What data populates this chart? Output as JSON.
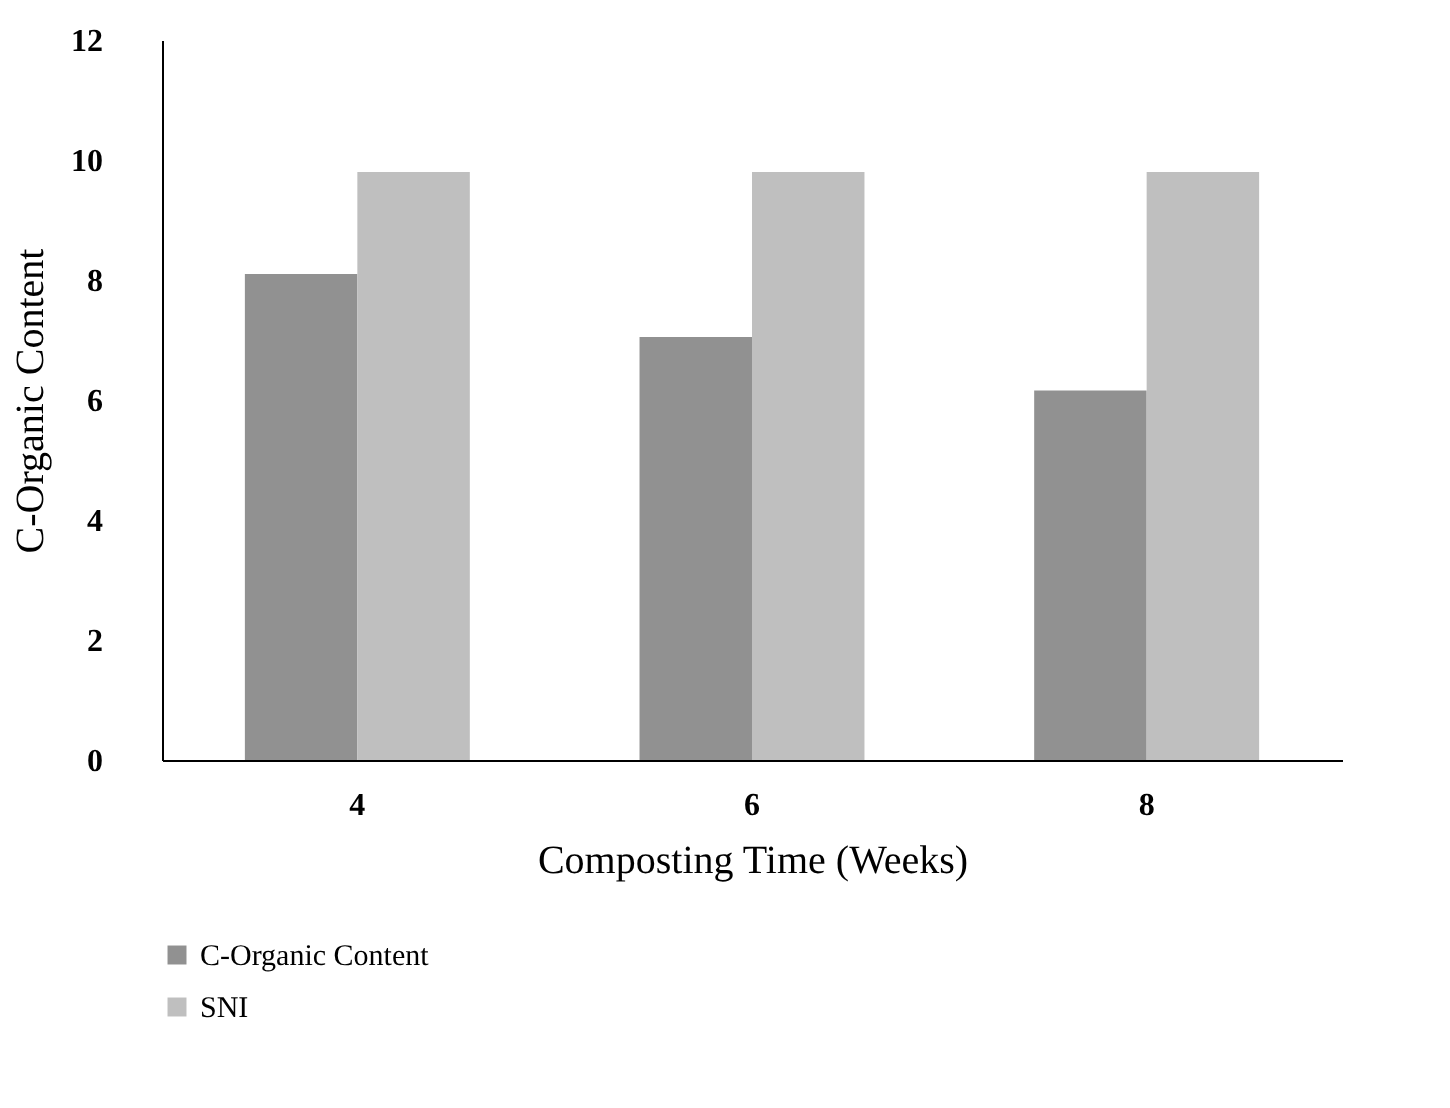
{
  "chart_data": {
    "type": "bar",
    "xlabel": "Composting Time (Weeks)",
    "ylabel": "C-Organic Content",
    "categories": [
      "4",
      "6",
      "8"
    ],
    "series": [
      {
        "name": "C-Organic Content",
        "color": "#919191",
        "values": [
          8.1,
          7.05,
          6.16
        ]
      },
      {
        "name": "SNI",
        "color": "#bfbfbf",
        "values": [
          9.8,
          9.8,
          9.8
        ]
      }
    ],
    "ylim": [
      0,
      12
    ],
    "yticks": [
      0,
      2,
      4,
      6,
      8,
      10,
      12
    ],
    "grid": false,
    "legend": "bottom left"
  }
}
